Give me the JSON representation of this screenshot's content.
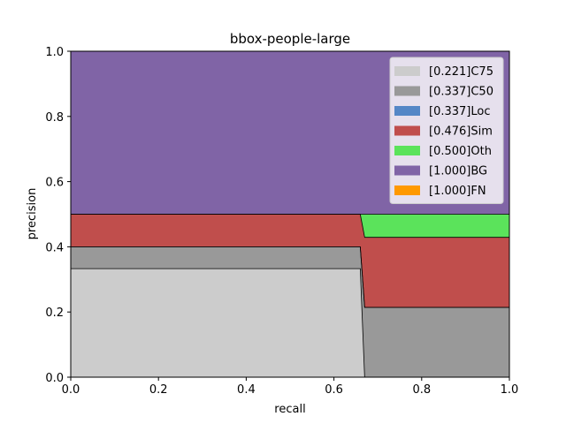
{
  "chart_data": {
    "type": "area",
    "title": "bbox-people-large",
    "xlabel": "recall",
    "ylabel": "precision",
    "xlim": [
      0,
      1
    ],
    "ylim": [
      0,
      1
    ],
    "xticks": [
      "0.0",
      "0.2",
      "0.4",
      "0.6",
      "0.8",
      "1.0"
    ],
    "yticks": [
      "0.0",
      "0.2",
      "0.4",
      "0.6",
      "0.8",
      "1.0"
    ],
    "grid": false,
    "legend_position": "top-right",
    "series": [
      {
        "name": "[0.221]C75",
        "color": "#cccccc",
        "x": [
          0,
          0.66,
          0.67,
          1.0
        ],
        "y": [
          0.333,
          0.333,
          0.0,
          0.0
        ]
      },
      {
        "name": "[0.337]C50",
        "color": "#999999",
        "x": [
          0,
          0.66,
          0.67,
          1.0
        ],
        "y": [
          0.4,
          0.4,
          0.214,
          0.214
        ]
      },
      {
        "name": "[0.337]Loc",
        "color": "#5487c6",
        "x": [
          0,
          0.66,
          0.67,
          1.0
        ],
        "y": [
          0.4,
          0.4,
          0.214,
          0.214
        ]
      },
      {
        "name": "[0.476]Sim",
        "color": "#c04e4c",
        "x": [
          0,
          0.66,
          0.67,
          1.0
        ],
        "y": [
          0.5,
          0.5,
          0.429,
          0.429
        ]
      },
      {
        "name": "[0.500]Oth",
        "color": "#5be35b",
        "x": [
          0,
          0.66,
          0.67,
          1.0
        ],
        "y": [
          0.5,
          0.5,
          0.5,
          0.5
        ]
      },
      {
        "name": "[1.000]BG",
        "color": "#8064a6",
        "x": [
          0,
          1.0
        ],
        "y": [
          1.0,
          1.0
        ]
      },
      {
        "name": "[1.000]FN",
        "color": "#ff9900",
        "x": [
          0,
          1.0
        ],
        "y": [
          1.0,
          1.0
        ]
      }
    ]
  }
}
